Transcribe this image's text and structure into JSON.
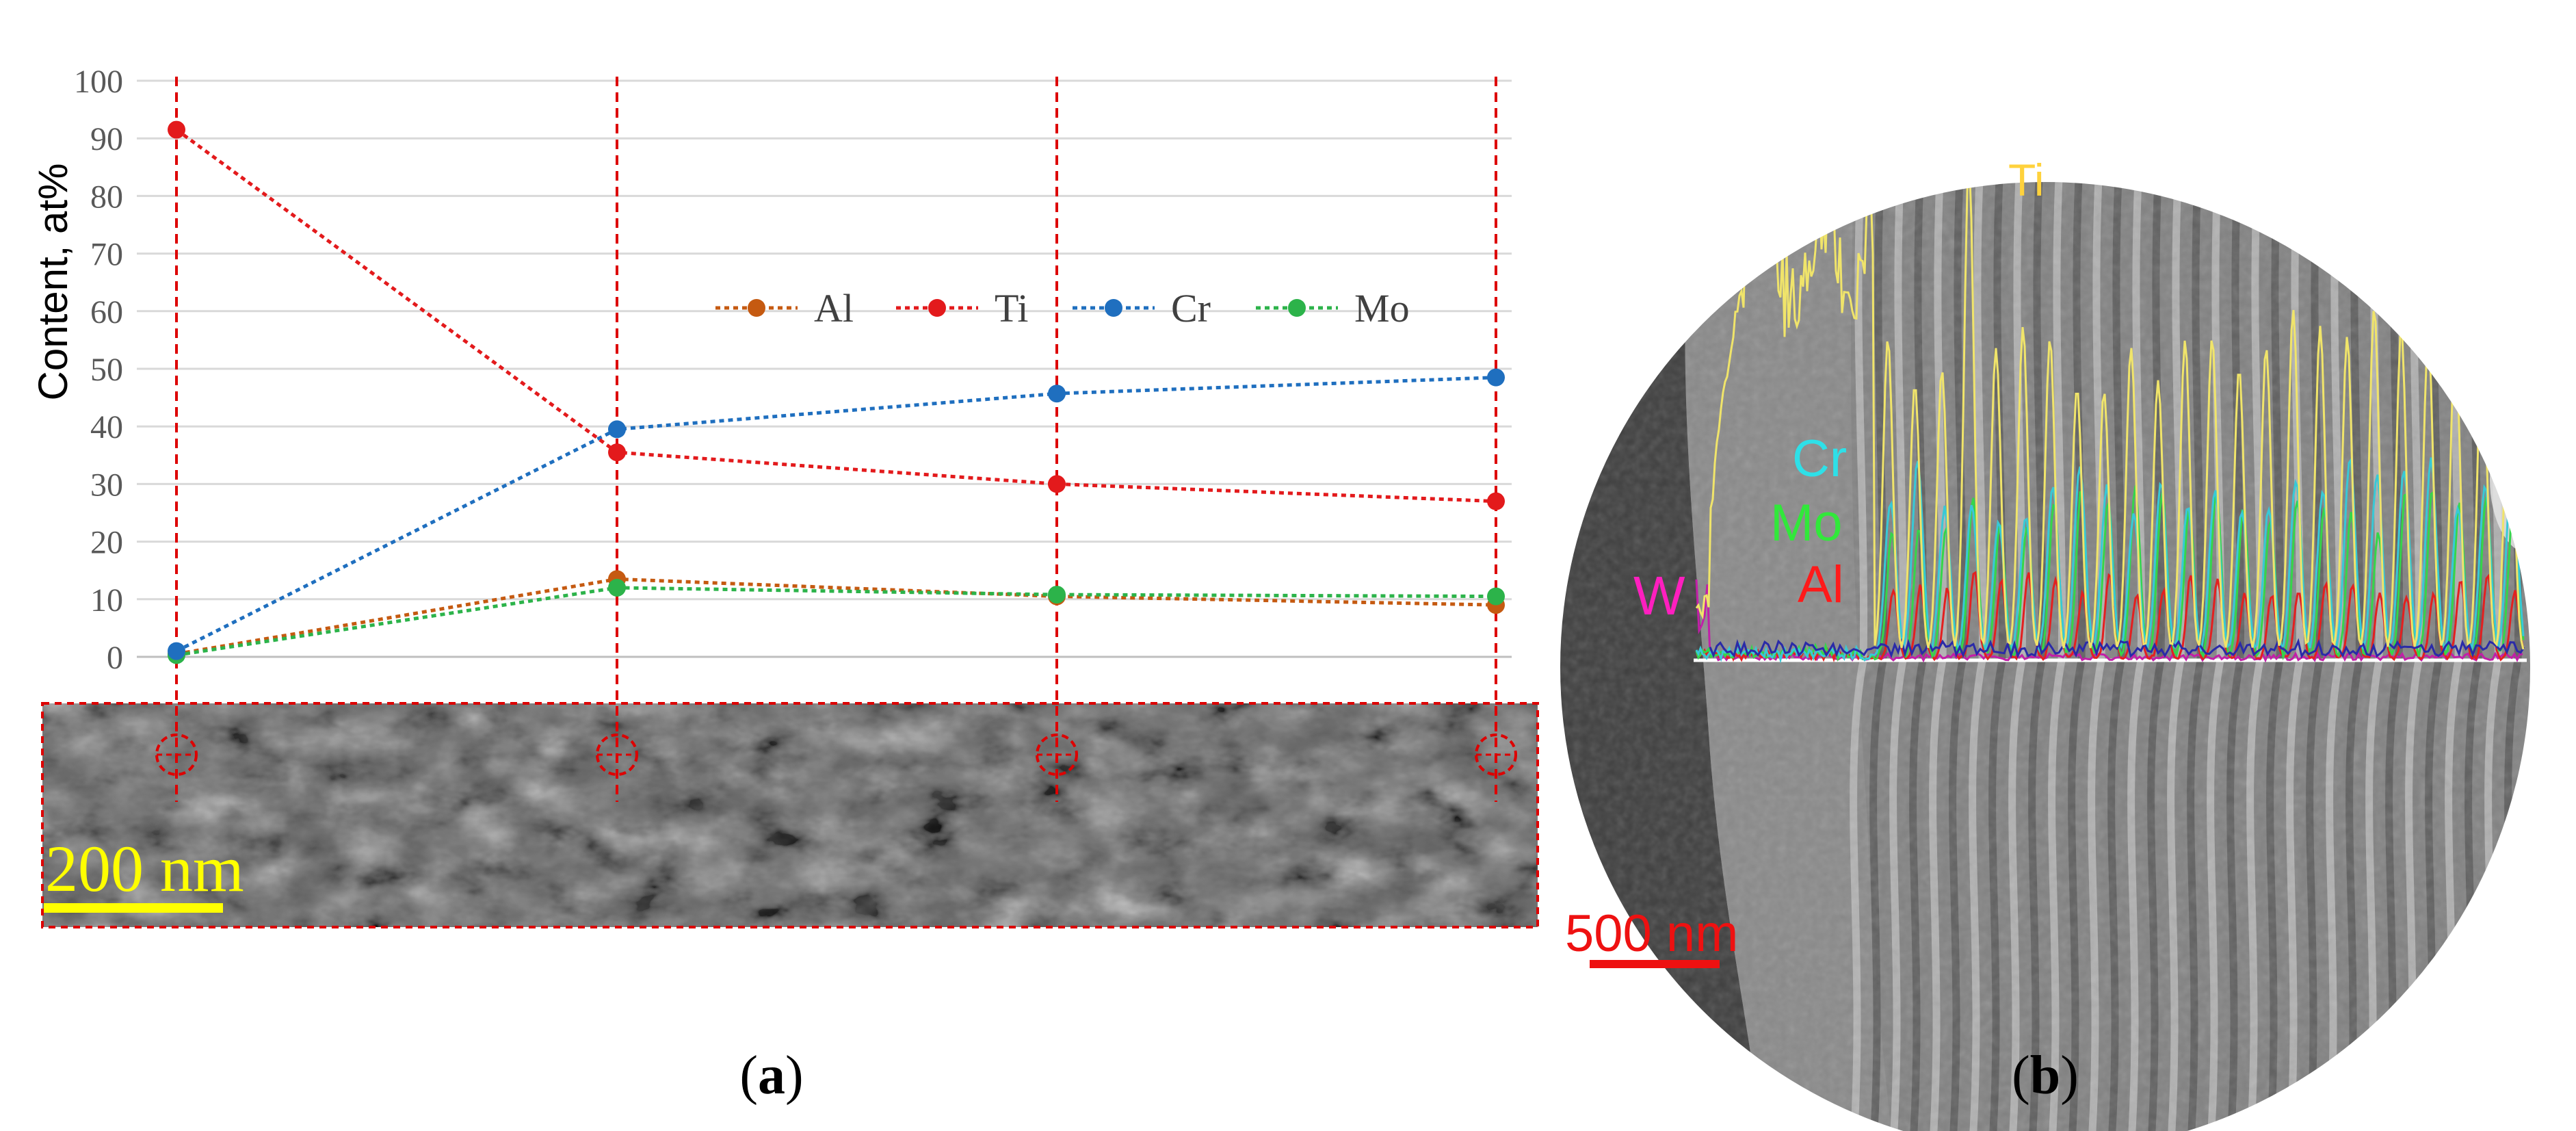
{
  "chart_data": [
    {
      "panel": "a",
      "type": "line",
      "ylabel": "Content, at%",
      "ylim": [
        0,
        100
      ],
      "yticks": [
        0,
        10,
        20,
        30,
        40,
        50,
        60,
        70,
        80,
        90,
        100
      ],
      "grid": true,
      "legend_position": "center-right",
      "x": [
        1,
        2,
        3,
        4
      ],
      "series": [
        {
          "name": "Al",
          "color": "#c55a11",
          "values": [
            0.5,
            13.5,
            10.5,
            9
          ]
        },
        {
          "name": "Ti",
          "color": "#e31a1c",
          "values": [
            91.5,
            35.5,
            30,
            27
          ]
        },
        {
          "name": "Cr",
          "color": "#1f6fbf",
          "values": [
            1,
            39.5,
            45.7,
            48.5
          ]
        },
        {
          "name": "Mo",
          "color": "#2cb34a",
          "values": [
            0.3,
            12,
            10.8,
            10.5
          ]
        }
      ],
      "scale_bar_label": "200 nm",
      "scale_bar_color": "#ffff00",
      "marker_color": "#dd0000"
    },
    {
      "panel": "b",
      "type": "line",
      "element_labels": [
        {
          "text": "Ti",
          "color": "#ffd23c"
        },
        {
          "text": "Cr",
          "color": "#2ee0e8"
        },
        {
          "text": "Mo",
          "color": "#31e83a"
        },
        {
          "text": "Al",
          "color": "#ff1a1a"
        },
        {
          "text": "W",
          "color": "#ff1fbf"
        }
      ],
      "scale_bar_label": "500 nm",
      "scale_bar_color": "#ee1111"
    }
  ],
  "captions": {
    "a": "(a)",
    "b": "(b)"
  }
}
